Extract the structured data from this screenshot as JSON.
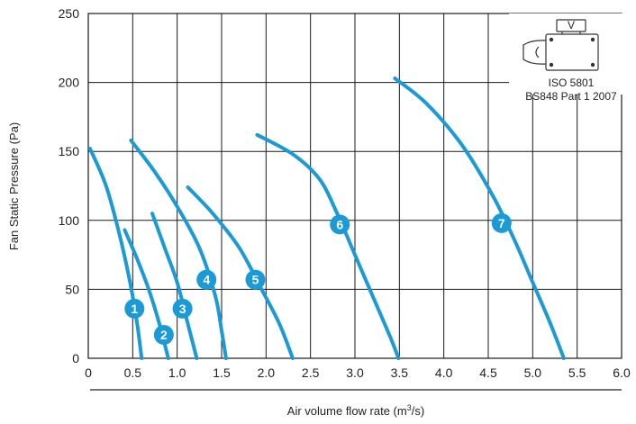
{
  "chart_data": {
    "type": "line",
    "title": "",
    "xlabel_prefix": "Air volume flow rate (m",
    "xlabel_sup": "3",
    "xlabel_suffix": "/s)",
    "ylabel": "Fan Static Pressure (Pa)",
    "xlim": [
      0,
      6
    ],
    "ylim": [
      0,
      250
    ],
    "x_ticks": [
      "0",
      "0.5",
      "1.0",
      "1.5",
      "2.0",
      "2.5",
      "3.0",
      "3.5",
      "4.0",
      "4.5",
      "5.0",
      "5.5",
      "6.0"
    ],
    "y_ticks": [
      "0",
      "50",
      "100",
      "150",
      "200",
      "250"
    ],
    "x_tick_values": [
      0,
      0.5,
      1,
      1.5,
      2,
      2.5,
      3,
      3.5,
      4,
      4.5,
      5,
      5.5,
      6
    ],
    "y_tick_values": [
      0,
      50,
      100,
      150,
      200,
      250
    ],
    "grid": true,
    "series_color": "#1a9ad6",
    "series": [
      {
        "label": "1",
        "label_point": [
          0.52,
          36
        ],
        "points": [
          [
            0.02,
            152
          ],
          [
            0.2,
            125
          ],
          [
            0.35,
            90
          ],
          [
            0.47,
            55
          ],
          [
            0.55,
            25
          ],
          [
            0.6,
            0
          ]
        ]
      },
      {
        "label": "2",
        "label_point": [
          0.85,
          17
        ],
        "points": [
          [
            0.41,
            93
          ],
          [
            0.55,
            72
          ],
          [
            0.68,
            50
          ],
          [
            0.8,
            25
          ],
          [
            0.9,
            0
          ]
        ]
      },
      {
        "label": "3",
        "label_point": [
          1.06,
          36
        ],
        "points": [
          [
            0.72,
            105
          ],
          [
            0.86,
            80
          ],
          [
            1.0,
            55
          ],
          [
            1.12,
            25
          ],
          [
            1.22,
            0
          ]
        ]
      },
      {
        "label": "4",
        "label_point": [
          1.33,
          57
        ],
        "points": [
          [
            0.48,
            158
          ],
          [
            0.75,
            135
          ],
          [
            1.0,
            110
          ],
          [
            1.25,
            80
          ],
          [
            1.43,
            45
          ],
          [
            1.5,
            20
          ],
          [
            1.55,
            0
          ]
        ]
      },
      {
        "label": "5",
        "label_point": [
          1.88,
          57
        ],
        "points": [
          [
            1.12,
            124
          ],
          [
            1.4,
            105
          ],
          [
            1.7,
            80
          ],
          [
            1.95,
            50
          ],
          [
            2.15,
            25
          ],
          [
            2.3,
            0
          ]
        ]
      },
      {
        "label": "6",
        "label_point": [
          2.83,
          97
        ],
        "points": [
          [
            1.9,
            162
          ],
          [
            2.3,
            148
          ],
          [
            2.6,
            130
          ],
          [
            2.8,
            105
          ],
          [
            3.0,
            75
          ],
          [
            3.2,
            45
          ],
          [
            3.4,
            15
          ],
          [
            3.49,
            0
          ]
        ]
      },
      {
        "label": "7",
        "label_point": [
          4.65,
          98
        ],
        "points": [
          [
            3.45,
            203
          ],
          [
            3.8,
            185
          ],
          [
            4.2,
            155
          ],
          [
            4.55,
            118
          ],
          [
            4.8,
            85
          ],
          [
            5.0,
            55
          ],
          [
            5.2,
            25
          ],
          [
            5.35,
            0
          ]
        ]
      }
    ],
    "inset": {
      "icon": "fan-casing-icon",
      "badge": "V",
      "lines": [
        "ISO 5801",
        "BS848 Part 1 2007"
      ]
    }
  }
}
